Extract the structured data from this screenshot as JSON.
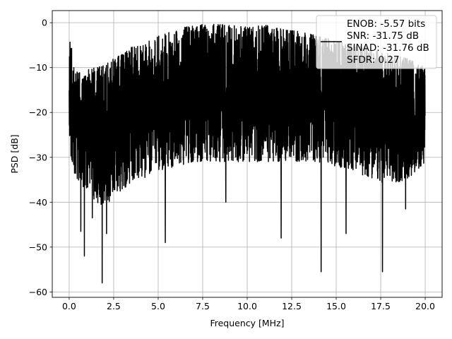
{
  "chart_data": {
    "type": "line",
    "xlabel": "Frequency [MHz]",
    "ylabel": "PSD [dB]",
    "xlim": [
      -0.95,
      20.95
    ],
    "ylim": [
      -61.2,
      2.7
    ],
    "x_ticks": [
      0.0,
      2.5,
      5.0,
      7.5,
      10.0,
      12.5,
      15.0,
      17.5,
      20.0
    ],
    "x_tick_labels": [
      "0.0",
      "2.5",
      "5.0",
      "7.5",
      "10.0",
      "12.5",
      "15.0",
      "17.5",
      "20.0"
    ],
    "y_ticks": [
      0,
      -10,
      -20,
      -30,
      -40,
      -50,
      -60
    ],
    "y_tick_labels": [
      "0",
      "−10",
      "−20",
      "−30",
      "−40",
      "−50",
      "−60"
    ],
    "grid": true,
    "legend_position": "top-right",
    "series": [
      {
        "name": "",
        "color": "#000000",
        "legend_lines": [
          "ENOB: -5.57 bits",
          "SNR: -31.75 dB",
          "SINAD: -31.76 dB",
          "SFDR: 0.27"
        ],
        "upper_envelope": {
          "x": [
            0.0,
            0.3,
            0.7,
            1.0,
            1.5,
            2.0,
            2.5,
            3.0,
            3.5,
            4.0,
            5.0,
            6.0,
            7.0,
            8.0,
            9.0,
            10.0,
            11.0,
            12.0,
            13.0,
            14.0,
            15.0,
            16.0,
            17.0,
            18.0,
            19.0,
            20.0
          ],
          "y": [
            -1.0,
            -11.0,
            -11.0,
            -10.5,
            -10.0,
            -9.5,
            -8.0,
            -7.0,
            -5.5,
            -5.0,
            -3.0,
            -1.5,
            -0.5,
            -0.3,
            -0.5,
            -1.0,
            -0.5,
            -1.5,
            -2.0,
            -3.0,
            -4.0,
            -5.0,
            -5.5,
            -7.0,
            -8.0,
            -10.0
          ]
        },
        "lower_envelope": {
          "x": [
            0.0,
            0.3,
            0.7,
            1.0,
            1.5,
            2.0,
            2.5,
            3.0,
            3.5,
            4.0,
            5.0,
            6.0,
            7.0,
            8.0,
            9.0,
            10.0,
            11.0,
            12.0,
            13.0,
            14.0,
            15.0,
            16.0,
            17.0,
            18.0,
            19.0,
            20.0
          ],
          "y": [
            -29.0,
            -34.0,
            -37.0,
            -38.0,
            -40.0,
            -41.0,
            -39.0,
            -37.0,
            -36.0,
            -35.0,
            -33.0,
            -32.0,
            -31.0,
            -31.0,
            -31.0,
            -31.0,
            -31.0,
            -31.0,
            -31.0,
            -31.0,
            -32.0,
            -33.0,
            -35.0,
            -36.0,
            -35.0,
            -31.0
          ]
        },
        "dips": [
          {
            "x": 0.65,
            "y": -46.5
          },
          {
            "x": 0.85,
            "y": -52.0
          },
          {
            "x": 1.3,
            "y": -43.5
          },
          {
            "x": 1.85,
            "y": -58.0
          },
          {
            "x": 2.1,
            "y": -47.0
          },
          {
            "x": 5.4,
            "y": -49.0
          },
          {
            "x": 8.8,
            "y": -40.0
          },
          {
            "x": 11.9,
            "y": -48.0
          },
          {
            "x": 14.15,
            "y": -55.5
          },
          {
            "x": 15.55,
            "y": -47.0
          },
          {
            "x": 17.6,
            "y": -55.5
          },
          {
            "x": 18.9,
            "y": -41.5
          }
        ]
      }
    ]
  }
}
